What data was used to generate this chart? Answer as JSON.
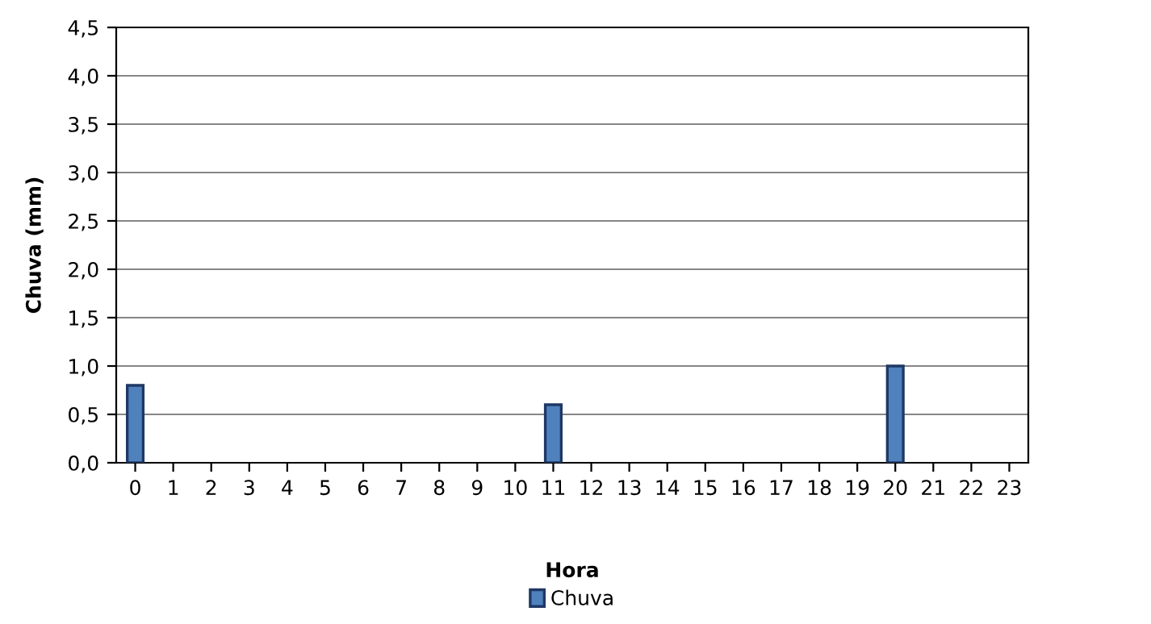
{
  "chart_data": {
    "type": "bar",
    "xlabel": "Hora",
    "ylabel": "Chuva (mm)",
    "categories": [
      "0",
      "1",
      "2",
      "3",
      "4",
      "5",
      "6",
      "7",
      "8",
      "9",
      "10",
      "11",
      "12",
      "13",
      "14",
      "15",
      "16",
      "17",
      "18",
      "19",
      "20",
      "21",
      "22",
      "23"
    ],
    "series": [
      {
        "name": "Chuva",
        "color": "#4f81bd",
        "values": [
          0.8,
          0,
          0,
          0,
          0,
          0,
          0,
          0,
          0,
          0,
          0,
          0.6,
          0,
          0,
          0,
          0,
          0,
          0,
          0,
          0,
          1.0,
          0,
          0,
          0
        ]
      }
    ],
    "ylim": [
      0,
      4.5
    ],
    "yticks": [
      {
        "value": 0,
        "label": "0,0"
      },
      {
        "value": 0.5,
        "label": "0,5"
      },
      {
        "value": 1,
        "label": "1,0"
      },
      {
        "value": 1.5,
        "label": "1,5"
      },
      {
        "value": 2,
        "label": "2,0"
      },
      {
        "value": 2.5,
        "label": "2,5"
      },
      {
        "value": 3,
        "label": "3,0"
      },
      {
        "value": 3.5,
        "label": "3,5"
      },
      {
        "value": 4,
        "label": "4,0"
      },
      {
        "value": 4.5,
        "label": "4,5"
      }
    ],
    "grid": "y",
    "legend": "bottom"
  }
}
